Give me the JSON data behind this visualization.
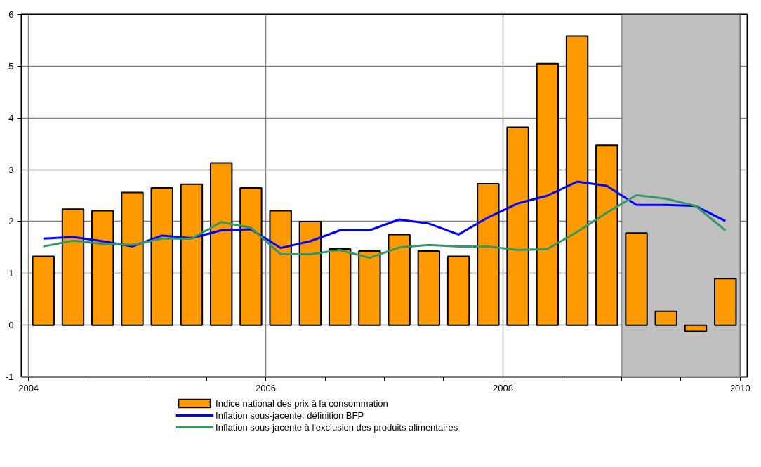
{
  "chart_data": {
    "type": "bar",
    "x": [
      2004.125,
      2004.375,
      2004.625,
      2004.875,
      2005.125,
      2005.375,
      2005.625,
      2005.875,
      2006.125,
      2006.375,
      2006.625,
      2006.875,
      2007.125,
      2007.375,
      2007.625,
      2007.875,
      2008.125,
      2008.375,
      2008.625,
      2008.875,
      2009.125,
      2009.375,
      2009.625,
      2009.875
    ],
    "series": [
      {
        "name": "Indice national des prix à la consommation",
        "color": "#ff9900",
        "values": [
          1.33,
          2.24,
          2.21,
          2.56,
          2.65,
          2.72,
          3.13,
          2.65,
          2.21,
          2.0,
          1.47,
          1.43,
          1.75,
          1.43,
          1.33,
          2.73,
          3.82,
          5.05,
          5.58,
          3.47,
          1.78,
          0.27,
          -0.12,
          0.9
        ]
      },
      {
        "name": "Inflation sous-jacente: définition BFP",
        "type": "line",
        "color": "#0000ff",
        "values": [
          1.67,
          1.7,
          1.62,
          1.52,
          1.73,
          1.68,
          1.83,
          1.85,
          1.49,
          1.62,
          1.83,
          1.83,
          2.04,
          1.96,
          1.75,
          2.08,
          2.35,
          2.5,
          2.77,
          2.69,
          2.32,
          2.32,
          2.3,
          2.01
        ]
      },
      {
        "name": "Inflation sous-jacente à l'exclusion des produits alimentaires",
        "type": "line",
        "color": "#339966",
        "values": [
          1.52,
          1.63,
          1.57,
          1.55,
          1.67,
          1.67,
          1.99,
          1.88,
          1.37,
          1.37,
          1.45,
          1.3,
          1.5,
          1.55,
          1.52,
          1.52,
          1.45,
          1.47,
          1.8,
          2.17,
          2.51,
          2.44,
          2.3,
          1.83
        ]
      }
    ],
    "xlim": [
      2003.94,
      2010.06
    ],
    "xticks": [
      2004,
      {
        "value": 2004.5,
        "label": null
      },
      {
        "value": 2005,
        "label": null
      },
      {
        "value": 2005.5,
        "label": null
      },
      2006,
      {
        "value": 2006.5,
        "label": null
      },
      {
        "value": 2007,
        "label": null
      },
      {
        "value": 2007.5,
        "label": null
      },
      2008,
      {
        "value": 2008.5,
        "label": null
      },
      {
        "value": 2009,
        "label": null
      },
      {
        "value": 2009.5,
        "label": null
      },
      2010
    ],
    "ylim": [
      -1,
      6
    ],
    "yticks": [
      -1,
      0,
      1,
      2,
      3,
      4,
      5,
      6
    ],
    "bands": [
      {
        "axis": "x",
        "from": 2009,
        "to": 2010,
        "color": "#c0c0c0"
      }
    ],
    "grid": true,
    "legend": "bottom",
    "line_style": "solid",
    "marker": "none"
  }
}
